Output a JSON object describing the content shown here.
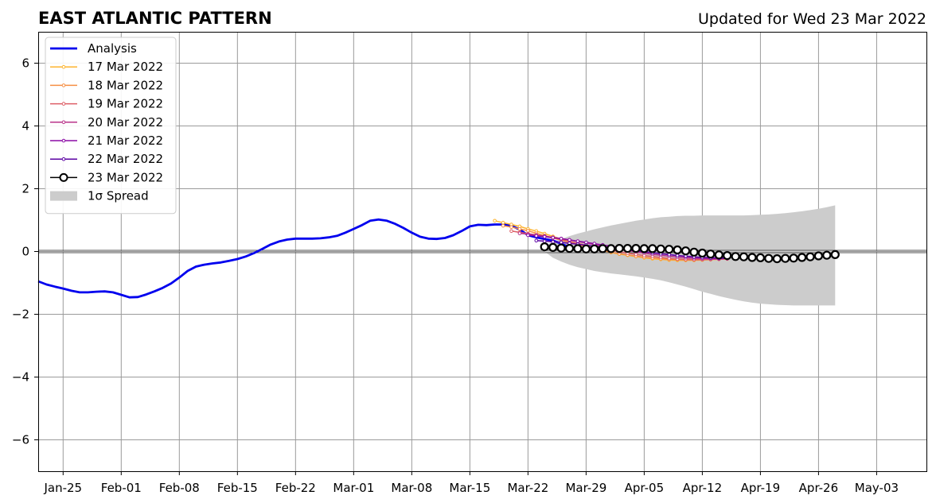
{
  "chart_data": {
    "type": "line",
    "title": "EAST ATLANTIC PATTERN",
    "subtitle": "Updated for Wed 23 Mar 2022",
    "xlabel": "",
    "ylabel": "",
    "xlim": [
      "2022-01-22",
      "2022-05-09"
    ],
    "ylim": [
      -7,
      7
    ],
    "x_ticks": [
      "2022-01-25",
      "2022-02-01",
      "2022-02-08",
      "2022-02-15",
      "2022-02-22",
      "2022-03-01",
      "2022-03-08",
      "2022-03-15",
      "2022-03-22",
      "2022-03-29",
      "2022-04-05",
      "2022-04-12",
      "2022-04-19",
      "2022-04-26",
      "2022-05-03"
    ],
    "x_tick_labels": [
      "Jan-25",
      "Feb-01",
      "Feb-08",
      "Feb-15",
      "Feb-22",
      "Mar-01",
      "Mar-08",
      "Mar-15",
      "Mar-22",
      "Mar-29",
      "Apr-05",
      "Apr-12",
      "Apr-19",
      "Apr-26",
      "May-03"
    ],
    "y_ticks": [
      -6,
      -4,
      -2,
      0,
      2,
      4,
      6
    ],
    "y_tick_labels": [
      "−6",
      "−4",
      "−2",
      "0",
      "2",
      "4",
      "6"
    ],
    "grid": true,
    "legend_position": "top-left",
    "zero_line": 0,
    "series": [
      {
        "name": "Analysis",
        "color": "#0000ee",
        "start": "2022-01-22",
        "values": [
          -0.95,
          -1.05,
          -1.12,
          -1.18,
          -1.25,
          -1.3,
          -1.3,
          -1.28,
          -1.27,
          -1.3,
          -1.38,
          -1.46,
          -1.45,
          -1.37,
          -1.27,
          -1.16,
          -1.02,
          -0.83,
          -0.62,
          -0.48,
          -0.42,
          -0.38,
          -0.35,
          -0.3,
          -0.24,
          -0.16,
          -0.05,
          0.08,
          0.22,
          0.32,
          0.38,
          0.41,
          0.41,
          0.41,
          0.42,
          0.45,
          0.5,
          0.6,
          0.72,
          0.84,
          0.98,
          1.02,
          0.98,
          0.88,
          0.75,
          0.6,
          0.47,
          0.41,
          0.4,
          0.43,
          0.52,
          0.65,
          0.8,
          0.85,
          0.84,
          0.86,
          0.86,
          0.82,
          0.7,
          0.52,
          0.45,
          0.4,
          0.35,
          0.25,
          0.13
        ]
      },
      {
        "name": "17 Mar 2022",
        "color": "#fdb42f",
        "start": "2022-03-18",
        "values": [
          0.98,
          0.92,
          0.86,
          0.8,
          0.72,
          0.65,
          0.57,
          0.48,
          0.4,
          0.32,
          0.24,
          0.16,
          0.09,
          0.03,
          -0.03,
          -0.08,
          -0.12,
          -0.16,
          -0.2,
          -0.23,
          -0.25,
          -0.27,
          -0.28,
          -0.28,
          -0.28,
          -0.27,
          -0.26,
          -0.25,
          -0.24
        ]
      },
      {
        "name": "18 Mar 2022",
        "color": "#f68f44",
        "start": "2022-03-19",
        "values": [
          0.82,
          0.78,
          0.72,
          0.66,
          0.58,
          0.51,
          0.43,
          0.36,
          0.29,
          0.22,
          0.15,
          0.08,
          0.03,
          -0.02,
          -0.07,
          -0.11,
          -0.15,
          -0.18,
          -0.21,
          -0.23,
          -0.25,
          -0.26,
          -0.27,
          -0.27,
          -0.26,
          -0.25,
          -0.24,
          -0.23
        ]
      },
      {
        "name": "19 Mar 2022",
        "color": "#dd5e66",
        "start": "2022-03-20",
        "values": [
          0.65,
          0.61,
          0.57,
          0.53,
          0.48,
          0.43,
          0.38,
          0.32,
          0.26,
          0.2,
          0.14,
          0.09,
          0.04,
          -0.01,
          -0.05,
          -0.09,
          -0.13,
          -0.16,
          -0.19,
          -0.22,
          -0.24,
          -0.25,
          -0.26,
          -0.26,
          -0.25,
          -0.24,
          -0.23
        ]
      },
      {
        "name": "20 Mar 2022",
        "color": "#b83289",
        "start": "2022-03-21",
        "values": [
          0.58,
          0.55,
          0.52,
          0.49,
          0.45,
          0.41,
          0.37,
          0.32,
          0.27,
          0.22,
          0.17,
          0.12,
          0.07,
          0.03,
          -0.01,
          -0.05,
          -0.09,
          -0.12,
          -0.15,
          -0.18,
          -0.2,
          -0.22,
          -0.23,
          -0.24,
          -0.24,
          -0.23
        ]
      },
      {
        "name": "21 Mar 2022",
        "color": "#8b0aa5",
        "start": "2022-03-22",
        "values": [
          0.52,
          0.5,
          0.47,
          0.44,
          0.41,
          0.37,
          0.33,
          0.29,
          0.25,
          0.21,
          0.17,
          0.12,
          0.08,
          0.04,
          0.0,
          -0.04,
          -0.07,
          -0.1,
          -0.13,
          -0.16,
          -0.18,
          -0.2,
          -0.21,
          -0.22,
          -0.22
        ]
      },
      {
        "name": "22 Mar 2022",
        "color": "#5b02a3",
        "start": "2022-03-23",
        "values": [
          0.35,
          0.33,
          0.31,
          0.29,
          0.26,
          0.23,
          0.2,
          0.17,
          0.14,
          0.11,
          0.08,
          0.05,
          0.02,
          -0.01,
          -0.04,
          -0.07,
          -0.1,
          -0.13,
          -0.15,
          -0.17,
          -0.19,
          -0.2,
          -0.21,
          -0.21
        ]
      },
      {
        "name": "23 Mar 2022",
        "color": "#000000",
        "start": "2022-03-24",
        "values": [
          0.15,
          0.13,
          0.11,
          0.1,
          0.09,
          0.08,
          0.08,
          0.09,
          0.09,
          0.1,
          0.1,
          0.1,
          0.09,
          0.09,
          0.08,
          0.07,
          0.05,
          0.02,
          -0.02,
          -0.05,
          -0.08,
          -0.11,
          -0.13,
          -0.16,
          -0.17,
          -0.19,
          -0.2,
          -0.22,
          -0.23,
          -0.22,
          -0.21,
          -0.19,
          -0.17,
          -0.14,
          -0.12,
          -0.1
        ]
      }
    ],
    "spread": {
      "name": "1σ Spread",
      "color": "#cccccc",
      "start": "2022-03-24",
      "upper": [
        0.2,
        0.3,
        0.4,
        0.49,
        0.57,
        0.64,
        0.71,
        0.77,
        0.83,
        0.88,
        0.93,
        0.98,
        1.02,
        1.06,
        1.09,
        1.11,
        1.13,
        1.14,
        1.14,
        1.15,
        1.15,
        1.15,
        1.15,
        1.15,
        1.15,
        1.16,
        1.17,
        1.18,
        1.2,
        1.22,
        1.25,
        1.28,
        1.32,
        1.36,
        1.41,
        1.47
      ],
      "lower": [
        0.0,
        -0.2,
        -0.32,
        -0.42,
        -0.5,
        -0.56,
        -0.62,
        -0.66,
        -0.7,
        -0.73,
        -0.76,
        -0.79,
        -0.83,
        -0.87,
        -0.92,
        -0.98,
        -1.05,
        -1.12,
        -1.2,
        -1.28,
        -1.35,
        -1.42,
        -1.48,
        -1.54,
        -1.59,
        -1.63,
        -1.66,
        -1.68,
        -1.7,
        -1.71,
        -1.72,
        -1.72,
        -1.72,
        -1.72,
        -1.72,
        -1.72
      ]
    }
  }
}
